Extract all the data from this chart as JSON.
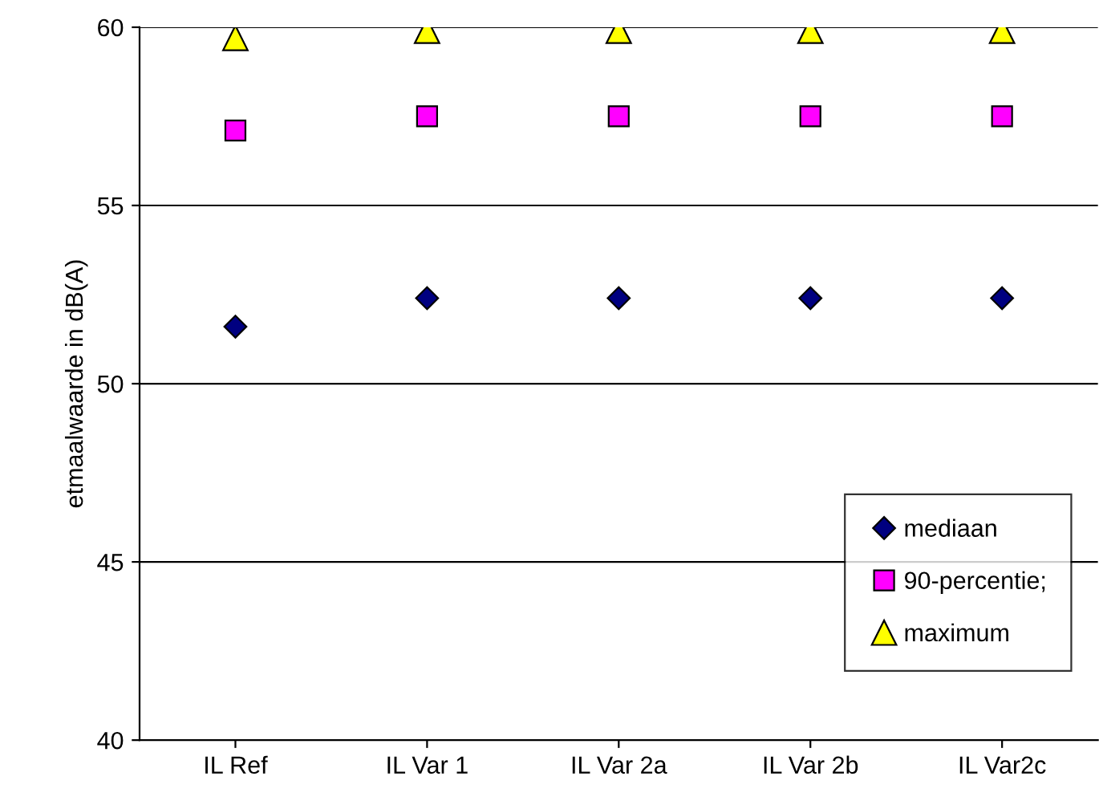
{
  "chart_data": {
    "type": "scatter",
    "ylabel": "etmaalwaarde in dB(A)",
    "categories": [
      "IL Ref",
      "IL Var 1",
      "IL Var 2a",
      "IL Var 2b",
      "IL Var2c"
    ],
    "series": [
      {
        "name": "mediaan",
        "color": "#000080",
        "marker": "diamond",
        "values": [
          51.6,
          52.4,
          52.4,
          52.4,
          52.4
        ]
      },
      {
        "name": "90-percentie;",
        "color": "#ff00ff",
        "marker": "square",
        "values": [
          57.1,
          57.5,
          57.5,
          57.5,
          57.5
        ]
      },
      {
        "name": "maximum",
        "color": "#ffff00",
        "marker": "triangle",
        "values": [
          59.7,
          59.9,
          59.9,
          59.9,
          59.9
        ]
      }
    ],
    "ylim": [
      40,
      60
    ],
    "yticks": [
      40,
      45,
      50,
      55,
      60
    ],
    "grid": "y",
    "legend": "bottom right"
  }
}
